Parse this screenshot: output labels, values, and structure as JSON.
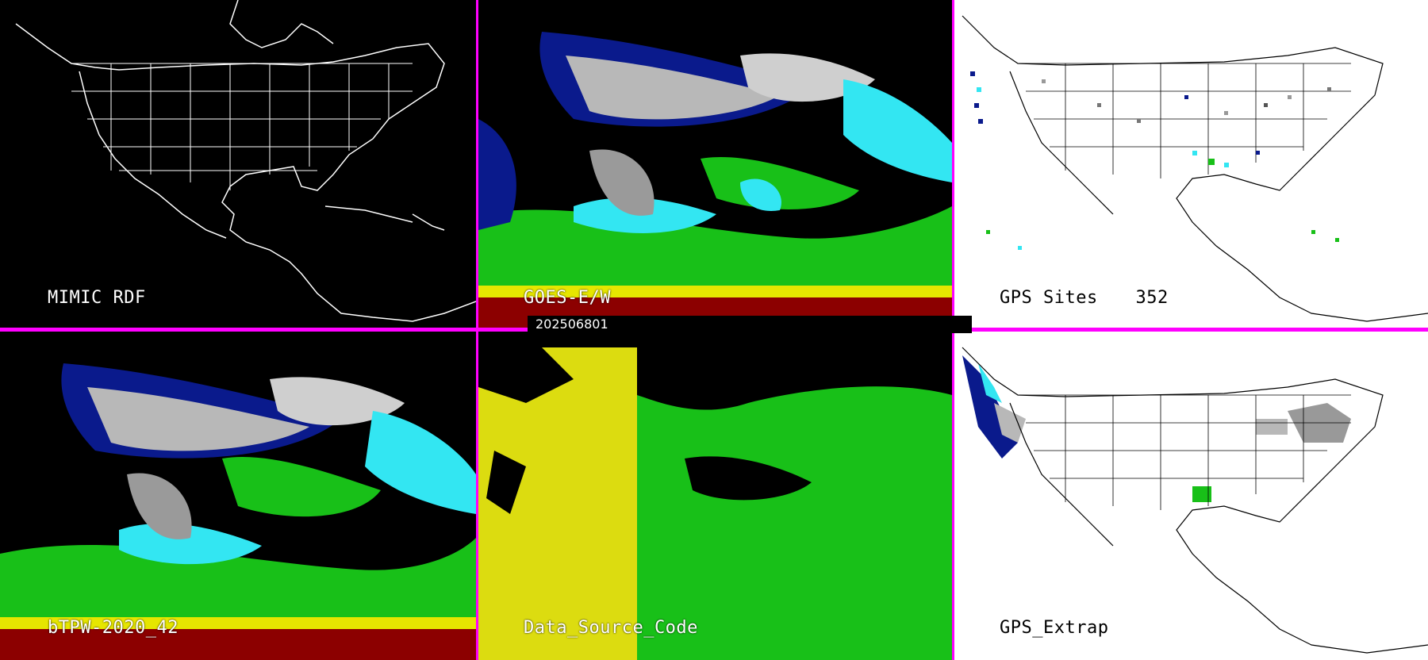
{
  "panels": {
    "mimic_rdf": {
      "label": "MIMIC RDF"
    },
    "goes_ew": {
      "label": "GOES-E/W"
    },
    "gps_sites": {
      "label": "GPS Sites",
      "count": "352"
    },
    "btpw": {
      "label": "bTPW-2020_42"
    },
    "data_source": {
      "label": "Data_Source_Code"
    },
    "gps_extrap": {
      "label": "GPS_Extrap"
    }
  },
  "timestamp": "202506801",
  "colors": {
    "divider": "#ff00ff",
    "tpw_dry_gray": "#b8b8b8",
    "tpw_navy": "#0a1a8c",
    "tpw_cyan": "#33e6f2",
    "tpw_green": "#18c018",
    "tpw_yellow": "#e6e600",
    "tpw_red": "#8c0000",
    "source_yellow": "#dcdc10",
    "source_green": "#18c018"
  }
}
